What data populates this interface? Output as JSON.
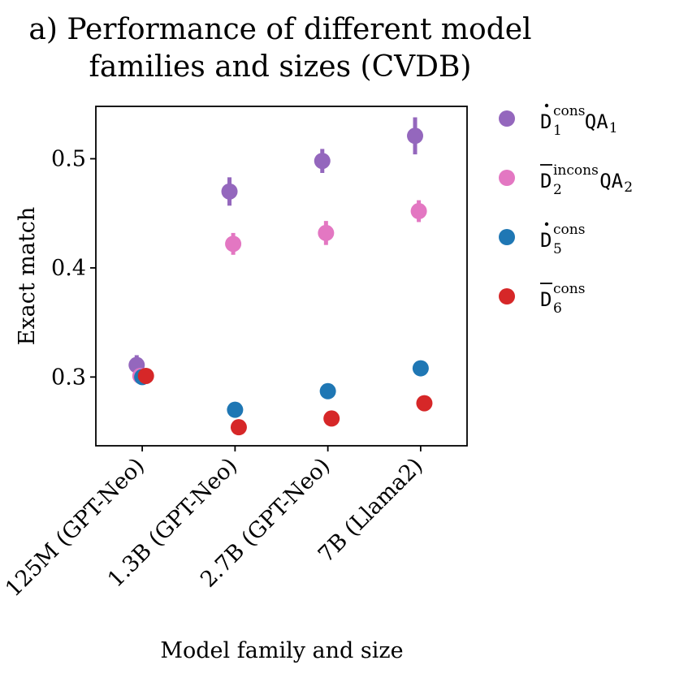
{
  "title": {
    "line1": "a) Performance of different model",
    "line2": "families and sizes (CVDB)"
  },
  "chart_data": {
    "type": "scatter",
    "title": "a) Performance of different model families and sizes (CVDB)",
    "xlabel": "Model family and size",
    "ylabel": "Exact match",
    "categories": [
      "125M (GPT-Neo)",
      "1.3B (GPT-Neo)",
      "2.7B (GPT-Neo)",
      "7B (Llama2)"
    ],
    "ylim": [
      0.237,
      0.548
    ],
    "yticks": [
      0.3,
      0.4,
      0.5
    ],
    "ytick_labels": [
      "0.3",
      "0.4",
      "0.5"
    ],
    "grid": false,
    "legend_position": "outside-right",
    "series": [
      {
        "name": "D1cons QA1",
        "legend": {
          "base": "D",
          "accent": "dot",
          "sup": "cons",
          "sub": "1",
          "suffix": "QA",
          "suffix_sub": "1"
        },
        "color": "#9467bd",
        "offset": -0.06,
        "values": [
          0.311,
          0.47,
          0.498,
          0.521
        ],
        "errors": [
          0.009,
          0.013,
          0.011,
          0.017
        ]
      },
      {
        "name": "D2incons QA2",
        "legend": {
          "base": "D",
          "accent": "bar",
          "sup": "incons",
          "sub": "2",
          "suffix": "QA",
          "suffix_sub": "2"
        },
        "color": "#e377c2",
        "offset": -0.02,
        "values": [
          0.301,
          0.422,
          0.432,
          0.452
        ],
        "errors": [
          0.005,
          0.01,
          0.011,
          0.01
        ]
      },
      {
        "name": "D5cons",
        "legend": {
          "base": "D",
          "accent": "dot",
          "sup": "cons",
          "sub": "5",
          "suffix": "",
          "suffix_sub": ""
        },
        "color": "#1f77b4",
        "offset": 0.0,
        "values": [
          0.3,
          0.27,
          0.287,
          0.308
        ],
        "errors": [
          0,
          0,
          0,
          0
        ]
      },
      {
        "name": "D6cons",
        "legend": {
          "base": "D",
          "accent": "bar",
          "sup": "cons",
          "sub": "6",
          "suffix": "",
          "suffix_sub": ""
        },
        "color": "#d62728",
        "offset": 0.04,
        "values": [
          0.301,
          0.254,
          0.262,
          0.276
        ],
        "errors": [
          0,
          0,
          0,
          0
        ]
      }
    ]
  }
}
